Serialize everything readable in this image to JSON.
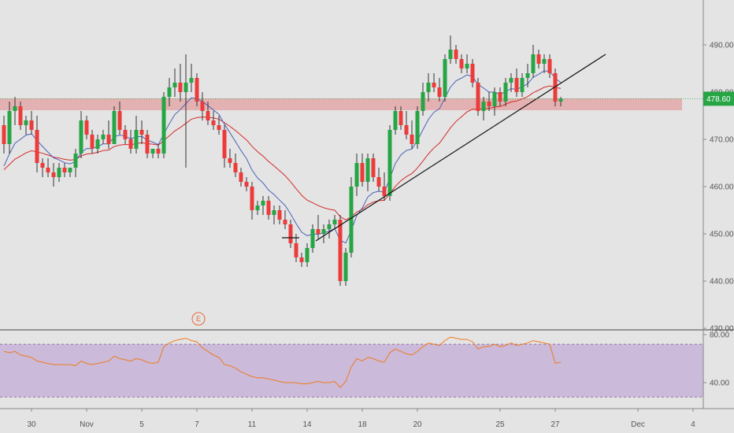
{
  "chart_data": {
    "type": "candlestick",
    "last_price": {
      "value": 478.6,
      "label": "478.60"
    },
    "y_axis": {
      "range": [
        430,
        494
      ],
      "ticks": [
        {
          "v": 490,
          "label": "490.00"
        },
        {
          "v": 480,
          "label": "480.00"
        },
        {
          "v": 470,
          "label": "470.00"
        },
        {
          "v": 460,
          "label": "460.00"
        },
        {
          "v": 450,
          "label": "450.00"
        },
        {
          "v": 440,
          "label": "440.00"
        },
        {
          "v": 430,
          "label": "430.00"
        }
      ]
    },
    "x_axis": {
      "ticks": [
        {
          "i": 5,
          "label": "30"
        },
        {
          "i": 15,
          "label": "Nov"
        },
        {
          "i": 25,
          "label": "5"
        },
        {
          "i": 35,
          "label": "7"
        },
        {
          "i": 45,
          "label": "11"
        },
        {
          "i": 55,
          "label": "14"
        },
        {
          "i": 65,
          "label": "18"
        },
        {
          "i": 75,
          "label": "20"
        },
        {
          "i": 90,
          "label": "25"
        },
        {
          "i": 100,
          "label": "27"
        },
        {
          "i": 115,
          "label": "Dec"
        },
        {
          "i": 125,
          "label": "4"
        }
      ]
    },
    "candles": [
      [
        473,
        475,
        467,
        469
      ],
      [
        469,
        478,
        467,
        476
      ],
      [
        476,
        479,
        473,
        477
      ],
      [
        477,
        478,
        472,
        473
      ],
      [
        473,
        475,
        471,
        474
      ],
      [
        474,
        476,
        471,
        472
      ],
      [
        472,
        475,
        463,
        465
      ],
      [
        465,
        466,
        462,
        464
      ],
      [
        464,
        466,
        462,
        463
      ],
      [
        463,
        465,
        460,
        462
      ],
      [
        462,
        465,
        461,
        464
      ],
      [
        464,
        465,
        462,
        463
      ],
      [
        463,
        464,
        462,
        464
      ],
      [
        464,
        468,
        462,
        467
      ],
      [
        467,
        476,
        466,
        474
      ],
      [
        474,
        475,
        470,
        471
      ],
      [
        471,
        472,
        467,
        468
      ],
      [
        468,
        471,
        467,
        470
      ],
      [
        470,
        472,
        469,
        471
      ],
      [
        471,
        474,
        468,
        469
      ],
      [
        469,
        477,
        469,
        476
      ],
      [
        476,
        478,
        471,
        472
      ],
      [
        472,
        473,
        469,
        470
      ],
      [
        470,
        472,
        467,
        468
      ],
      [
        468,
        475,
        467,
        472
      ],
      [
        472,
        474,
        469,
        471
      ],
      [
        471,
        472,
        466,
        467
      ],
      [
        467,
        468,
        466,
        468
      ],
      [
        468,
        469,
        466,
        467
      ],
      [
        467,
        480,
        466,
        479
      ],
      [
        479,
        483,
        477,
        481
      ],
      [
        481,
        485,
        479,
        482
      ],
      [
        482,
        486,
        478,
        480
      ],
      [
        480,
        488,
        464,
        482
      ],
      [
        482,
        486,
        480,
        483
      ],
      [
        483,
        484,
        477,
        478
      ],
      [
        478,
        480,
        474,
        476
      ],
      [
        476,
        478,
        473,
        474
      ],
      [
        474,
        476,
        472,
        473
      ],
      [
        473,
        475,
        471,
        472
      ],
      [
        472,
        473,
        464,
        466
      ],
      [
        466,
        468,
        464,
        465
      ],
      [
        465,
        467,
        462,
        463
      ],
      [
        463,
        464,
        460,
        461
      ],
      [
        461,
        462,
        459,
        460
      ],
      [
        460,
        461,
        453,
        455
      ],
      [
        455,
        457,
        454,
        456
      ],
      [
        456,
        458,
        454,
        457
      ],
      [
        457,
        458,
        453,
        454
      ],
      [
        454,
        456,
        452,
        455
      ],
      [
        455,
        456,
        452,
        453
      ],
      [
        453,
        455,
        451,
        452
      ],
      [
        452,
        453,
        447,
        448
      ],
      [
        448,
        450,
        444,
        445
      ],
      [
        445,
        446,
        443,
        444
      ],
      [
        444,
        448,
        443,
        447
      ],
      [
        447,
        452,
        446,
        451
      ],
      [
        451,
        454,
        449,
        450
      ],
      [
        450,
        452,
        448,
        451
      ],
      [
        451,
        453,
        449,
        452
      ],
      [
        452,
        454,
        451,
        453
      ],
      [
        453,
        454,
        439,
        440
      ],
      [
        440,
        447,
        439,
        446
      ],
      [
        446,
        462,
        445,
        460
      ],
      [
        460,
        467,
        458,
        465
      ],
      [
        465,
        467,
        460,
        461
      ],
      [
        461,
        467,
        459,
        466
      ],
      [
        466,
        467,
        461,
        462
      ],
      [
        462,
        464,
        459,
        460
      ],
      [
        460,
        463,
        457,
        458
      ],
      [
        458,
        473,
        457,
        472
      ],
      [
        472,
        477,
        471,
        476
      ],
      [
        476,
        477,
        472,
        473
      ],
      [
        473,
        476,
        470,
        471
      ],
      [
        471,
        474,
        468,
        469
      ],
      [
        469,
        477,
        468,
        476
      ],
      [
        476,
        482,
        475,
        480
      ],
      [
        480,
        484,
        478,
        482
      ],
      [
        482,
        484,
        480,
        481
      ],
      [
        481,
        483,
        478,
        479
      ],
      [
        479,
        488,
        478,
        487
      ],
      [
        487,
        492,
        486,
        489
      ],
      [
        489,
        490,
        486,
        487
      ],
      [
        487,
        488,
        484,
        485
      ],
      [
        485,
        488,
        484,
        486
      ],
      [
        486,
        487,
        481,
        482
      ],
      [
        482,
        483,
        475,
        476
      ],
      [
        476,
        479,
        474,
        478
      ],
      [
        478,
        480,
        476,
        477
      ],
      [
        477,
        481,
        475,
        480
      ],
      [
        480,
        481,
        477,
        478
      ],
      [
        478,
        483,
        477,
        482
      ],
      [
        482,
        484,
        480,
        483
      ],
      [
        483,
        485,
        479,
        480
      ],
      [
        480,
        484,
        479,
        483
      ],
      [
        483,
        486,
        481,
        484
      ],
      [
        484,
        490,
        483,
        488
      ],
      [
        488,
        489,
        485,
        486
      ],
      [
        486,
        488,
        484,
        487
      ],
      [
        487,
        488,
        483,
        484
      ],
      [
        484,
        485,
        477,
        478
      ],
      [
        478,
        479,
        477,
        478.6
      ]
    ],
    "overlays": [
      "EMA fast (blue)",
      "EMA slow (red)"
    ],
    "resistance_zone": [
      476,
      478
    ],
    "trendline": {
      "from": [
        57,
        449
      ],
      "to": [
        120,
        488
      ]
    },
    "earnings_marker": {
      "i": 39,
      "label": "E"
    },
    "rsi": {
      "range": [
        20,
        90
      ],
      "ticks": [
        {
          "v": 80,
          "label": "80.00"
        },
        {
          "v": 40,
          "label": "40.00"
        }
      ],
      "band": [
        30,
        70
      ],
      "values": [
        66,
        65,
        66,
        63,
        62,
        61,
        58,
        57,
        56,
        55,
        55,
        55,
        55,
        54,
        58,
        56,
        55,
        56,
        57,
        58,
        62,
        60,
        59,
        58,
        60,
        59,
        57,
        56,
        57,
        70,
        73,
        75,
        76,
        77,
        75,
        74,
        69,
        66,
        63,
        61,
        55,
        54,
        52,
        49,
        47,
        45,
        44,
        44,
        43,
        42,
        41,
        40,
        40,
        40,
        39,
        39,
        40,
        41,
        40,
        40,
        41,
        36,
        41,
        53,
        60,
        58,
        61,
        60,
        58,
        57,
        65,
        68,
        66,
        64,
        63,
        66,
        70,
        73,
        72,
        71,
        75,
        78,
        77,
        76,
        76,
        74,
        68,
        70,
        70,
        72,
        70,
        71,
        73,
        71,
        72,
        73,
        75,
        74,
        73,
        72,
        56,
        57
      ]
    },
    "grid": true
  }
}
